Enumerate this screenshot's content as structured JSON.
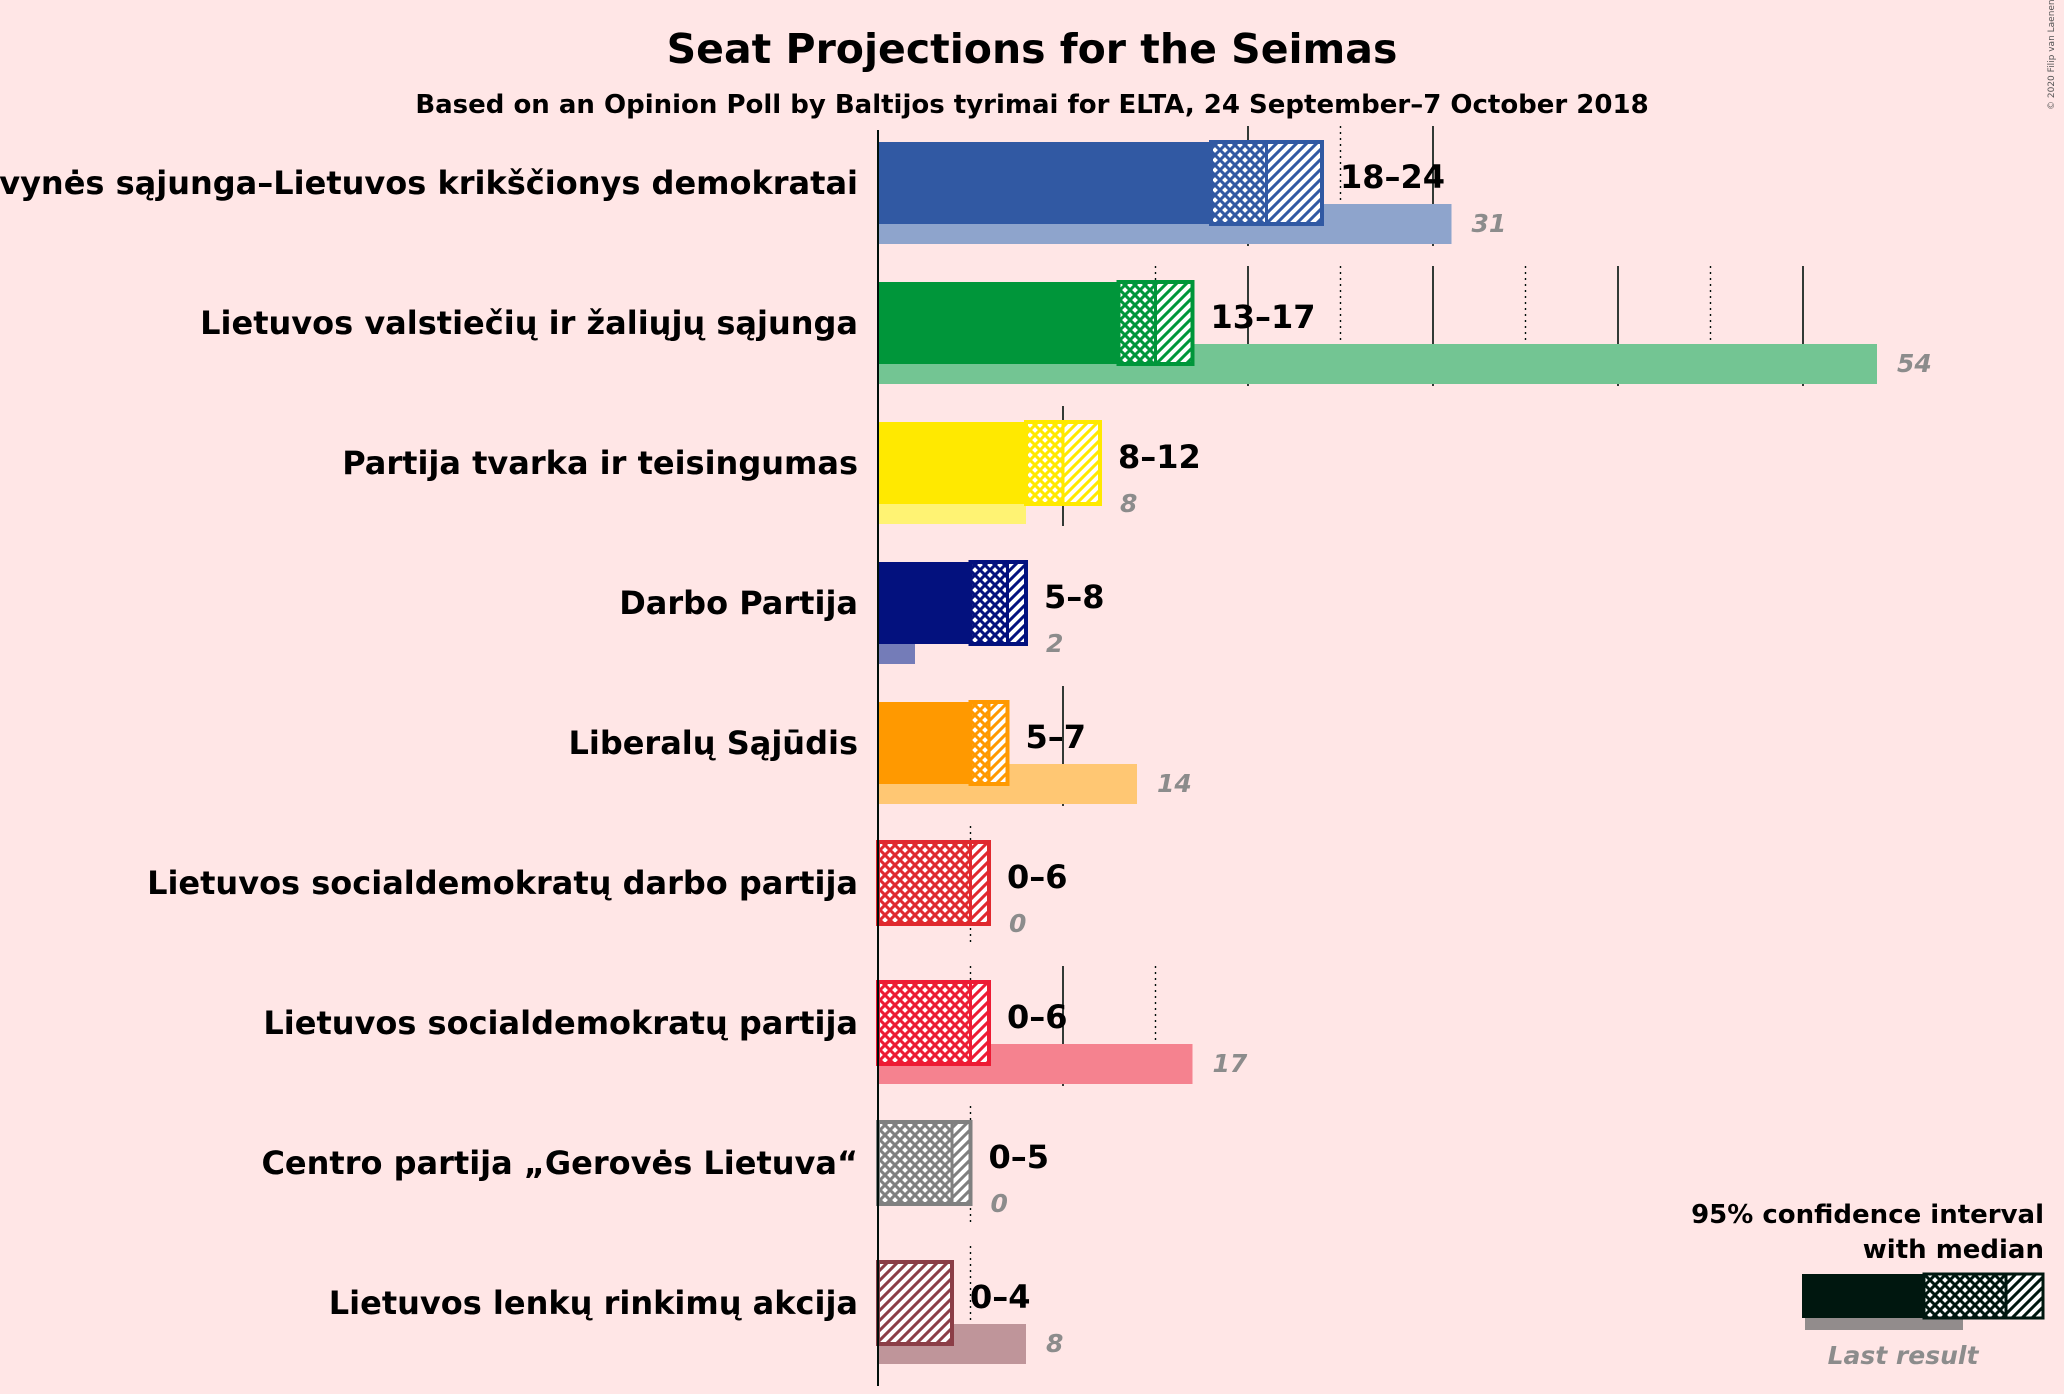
{
  "chart_data": {
    "type": "bar",
    "title": "Seat Projections for the Seimas",
    "subtitle": "Based on an Opinion Poll by Baltijos tyrimai for ELTA, 24 September–7 October 2018",
    "copyright": "© 2020 Filip van Laenen",
    "series": [
      {
        "name": "Tėvynės sąjunga–Lietuvos krikščionys demokratai",
        "low": 18,
        "median": 21,
        "high": 24,
        "range_label": "18–24",
        "last_result": 31,
        "last_label": "31",
        "color": "#3159A3"
      },
      {
        "name": "Lietuvos valstiečių ir žaliųjų sąjunga",
        "low": 13,
        "median": 15,
        "high": 17,
        "range_label": "13–17",
        "last_result": 54,
        "last_label": "54",
        "color": "#00963A"
      },
      {
        "name": "Partija tvarka ir teisingumas",
        "low": 8,
        "median": 10,
        "high": 12,
        "range_label": "8–12",
        "last_result": 8,
        "last_label": "8",
        "color": "#FFE900"
      },
      {
        "name": "Darbo Partija",
        "low": 5,
        "median": 7,
        "high": 8,
        "range_label": "5–8",
        "last_result": 2,
        "last_label": "2",
        "color": "#03117E"
      },
      {
        "name": "Liberalų Sąjūdis",
        "low": 5,
        "median": 6,
        "high": 7,
        "range_label": "5–7",
        "last_result": 14,
        "last_label": "14",
        "color": "#FF9900"
      },
      {
        "name": "Lietuvos socialdemokratų darbo partija",
        "low": 0,
        "median": 5,
        "high": 6,
        "range_label": "0–6",
        "last_result": 0,
        "last_label": "0",
        "color": "#E0292E"
      },
      {
        "name": "Lietuvos socialdemokratų partija",
        "low": 0,
        "median": 5,
        "high": 6,
        "range_label": "0–6",
        "last_result": 17,
        "last_label": "17",
        "color": "#ED1B34"
      },
      {
        "name": "Centro partija „Gerovės Lietuva“",
        "low": 0,
        "median": 4,
        "high": 5,
        "range_label": "0–5",
        "last_result": 0,
        "last_label": "0",
        "color": "#808080"
      },
      {
        "name": "Lietuvos lenkų rinkimų akcija",
        "low": 0,
        "median": 0,
        "high": 4,
        "range_label": "0–4",
        "last_result": 8,
        "last_label": "8",
        "color": "#8B3E47"
      }
    ],
    "legend": {
      "line1": "95% confidence interval",
      "line2": "with median",
      "last_result": "Last result",
      "placement": "bottom-right"
    },
    "gridlines": {
      "major_every": 10,
      "minor_every": 5,
      "style_minor": "dotted"
    }
  }
}
